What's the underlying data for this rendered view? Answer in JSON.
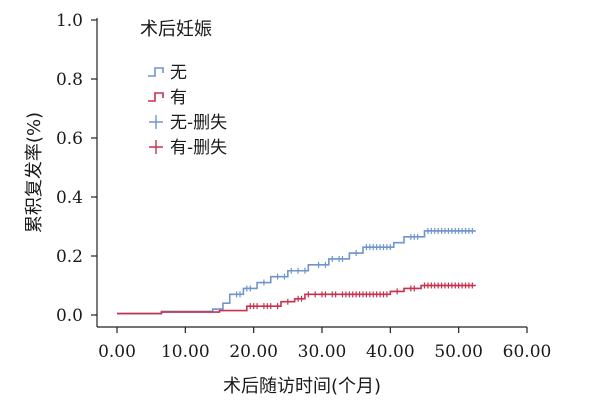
{
  "chart_data": {
    "type": "line",
    "subtype": "kaplan-meier-cumulative-incidence",
    "xlabel": "术后随访时间(个月)",
    "ylabel": "累积复发率(%)",
    "xlim": [
      0,
      60
    ],
    "ylim": [
      0,
      1.0
    ],
    "x_ticks": [
      "0.00",
      "10.00",
      "20.00",
      "30.00",
      "40.00",
      "50.00",
      "60.00"
    ],
    "y_ticks": [
      "0.0",
      "0.2",
      "0.4",
      "0.6",
      "0.8",
      "1.0"
    ],
    "grid": false,
    "legend": {
      "title": "术后妊娠",
      "position": "top-left",
      "entries": [
        {
          "label": "无",
          "kind": "step",
          "color": "#6f95cc"
        },
        {
          "label": "有",
          "kind": "step",
          "color": "#c8304e"
        },
        {
          "label": "无-删失",
          "kind": "censor",
          "color": "#6f95cc"
        },
        {
          "label": "有-删失",
          "kind": "censor",
          "color": "#c8304e"
        }
      ]
    },
    "series": [
      {
        "name": "无",
        "color": "#6f95cc",
        "x": [
          0,
          6.5,
          14,
          15.5,
          16.5,
          18.5,
          20.5,
          22.5,
          25,
          28,
          31,
          34,
          36,
          40.5,
          42,
          45,
          52.5
        ],
        "y": [
          0.005,
          0.012,
          0.02,
          0.04,
          0.07,
          0.09,
          0.11,
          0.13,
          0.15,
          0.17,
          0.19,
          0.21,
          0.23,
          0.245,
          0.265,
          0.285,
          0.285
        ],
        "censored_x": [
          17.5,
          18,
          19,
          19.5,
          21.5,
          23.5,
          24.5,
          25.5,
          26.5,
          27.5,
          29.5,
          30.5,
          31.5,
          32.5,
          33,
          35,
          36.5,
          37,
          37.5,
          38,
          38.5,
          39,
          39.5,
          40,
          43,
          43.5,
          44,
          45.5,
          46,
          46.5,
          47,
          47.5,
          48,
          48.5,
          49,
          49.5,
          50,
          50.5,
          51,
          51.5,
          52
        ]
      },
      {
        "name": "有",
        "color": "#c8304e",
        "x": [
          0,
          6.5,
          15,
          19,
          24,
          26,
          27.5,
          40,
          42,
          44.5,
          52.5
        ],
        "y": [
          0.005,
          0.01,
          0.015,
          0.03,
          0.045,
          0.055,
          0.07,
          0.08,
          0.09,
          0.1,
          0.1
        ],
        "censored_x": [
          19.5,
          20,
          20.5,
          21.5,
          22,
          22.5,
          23.5,
          25,
          26.5,
          27,
          28,
          29,
          30,
          30.5,
          31.5,
          32,
          33,
          33.5,
          34,
          34.5,
          35,
          35.5,
          36,
          36.5,
          37,
          37.5,
          38,
          38.5,
          39,
          39.5,
          41,
          43,
          43.5,
          45,
          45.5,
          46,
          46.5,
          47,
          47.5,
          48,
          48.5,
          49,
          49.5,
          50,
          50.5,
          51,
          51.5,
          52
        ]
      }
    ]
  }
}
